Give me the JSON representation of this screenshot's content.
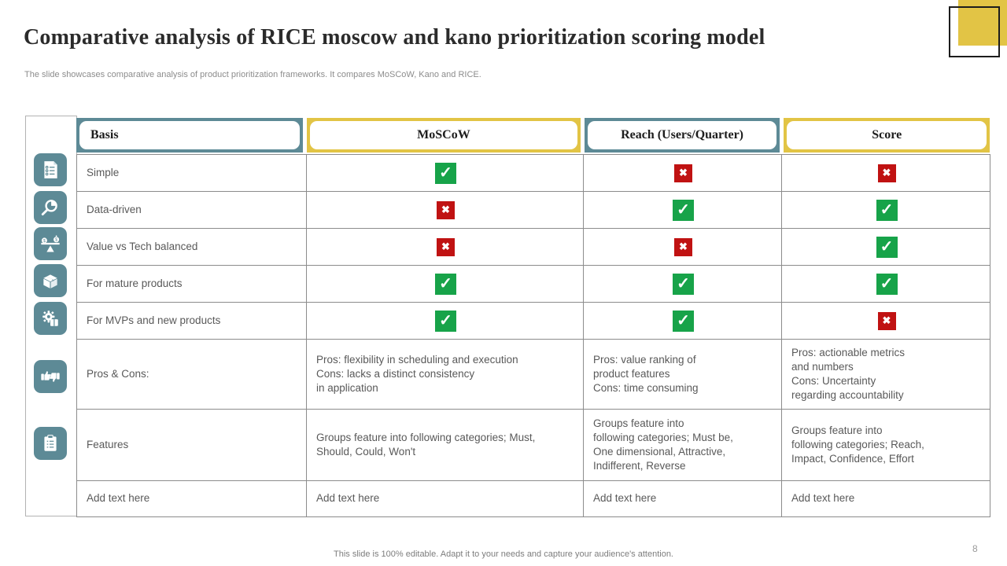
{
  "slide": {
    "title": "Comparative analysis of RICE moscow and kano prioritization scoring model",
    "subtitle": "The slide showcases comparative analysis of product prioritization frameworks. It compares MoSCoW, Kano and RICE.",
    "footer": "This slide is 100% editable. Adapt it to your needs and capture your audience's attention.",
    "page_number": "8"
  },
  "colors": {
    "teal": "#5d8a96",
    "yellow": "#e2c445",
    "check_green": "#17a349",
    "cross_red": "#c01212",
    "grid_gray": "#8c8c8c",
    "body_text": "#595959"
  },
  "sidebar": {
    "icons": [
      {
        "name": "checklist-document-icon"
      },
      {
        "name": "search-analysis-icon"
      },
      {
        "name": "balance-scale-icon"
      },
      {
        "name": "package-box-icon"
      },
      {
        "name": "gear-product-icon"
      },
      {
        "name": "thumbs-up-down-icon"
      },
      {
        "name": "clipboard-list-icon"
      }
    ]
  },
  "table": {
    "headers": [
      {
        "label": "Basis"
      },
      {
        "label": "MoSCoW"
      },
      {
        "label": "Reach (Users/Quarter)"
      },
      {
        "label": "Score"
      }
    ],
    "rows": [
      {
        "basis": "Simple",
        "moscow": "check",
        "reach": "cross",
        "score": "cross"
      },
      {
        "basis": "Data-driven",
        "moscow": "cross",
        "reach": "check",
        "score": "check"
      },
      {
        "basis": "Value vs Tech balanced",
        "moscow": "cross",
        "reach": "cross",
        "score": "check"
      },
      {
        "basis": "For mature products",
        "moscow": "check",
        "reach": "check",
        "score": "check"
      },
      {
        "basis": "For MVPs and new products",
        "moscow": "check",
        "reach": "check",
        "score": "cross"
      },
      {
        "basis": "Pros & Cons:",
        "moscow": "Pros: flexibility in scheduling and execution\nCons: lacks a distinct consistency\nin application",
        "reach": "Pros: value ranking of\nproduct features\nCons: time consuming",
        "score": "Pros: actionable metrics\nand numbers\nCons: Uncertainty\nregarding accountability"
      },
      {
        "basis": "Features",
        "moscow": "Groups feature into following categories; Must,\nShould, Could, Won't",
        "reach": "Groups feature into\nfollowing categories; Must be,\nOne dimensional, Attractive,\nIndifferent,  Reverse",
        "score": "Groups feature into\nfollowing categories; Reach,\nImpact, Confidence, Effort"
      },
      {
        "basis": "Add text here",
        "moscow": "Add text here",
        "reach": "Add text here",
        "score": "Add text here"
      }
    ]
  }
}
